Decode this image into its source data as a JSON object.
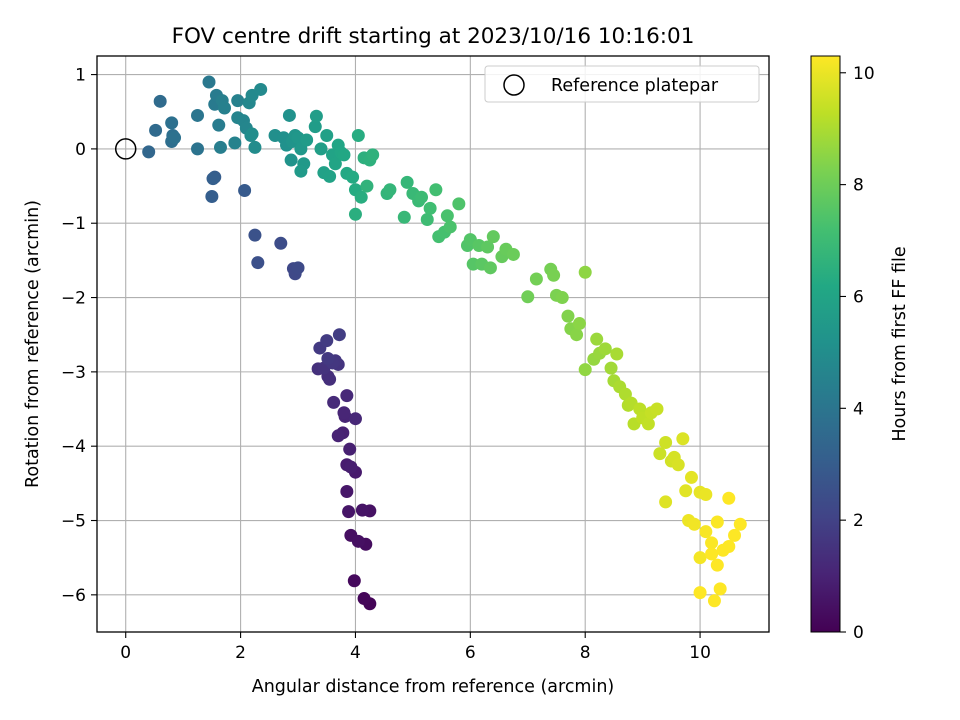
{
  "chart_data": {
    "type": "scatter",
    "title": "FOV centre drift starting at 2023/10/16 10:16:01",
    "xlabel": "Angular distance from reference (arcmin)",
    "ylabel": "Rotation from reference (arcmin)",
    "xlim": [
      -0.5,
      11.2
    ],
    "ylim": [
      -6.5,
      1.25
    ],
    "xticks": [
      0,
      2,
      4,
      6,
      8,
      10
    ],
    "yticks": [
      1,
      0,
      -1,
      -2,
      -3,
      -4,
      -5,
      -6
    ],
    "xtick_labels": [
      "0",
      "2",
      "4",
      "6",
      "8",
      "10"
    ],
    "ytick_labels": [
      "1",
      "0",
      "−1",
      "−2",
      "−3",
      "−4",
      "−5",
      "−6"
    ],
    "grid": true,
    "legend": {
      "position": "top-right",
      "entries": [
        "Reference platepar"
      ]
    },
    "reference_point": {
      "x": 0,
      "y": 0,
      "label": "Reference platepar",
      "marker": "open-circle"
    },
    "colorbar": {
      "label": "Hours from first FF file",
      "range": [
        0,
        10.3
      ],
      "ticks": [
        0,
        2,
        4,
        6,
        8,
        10
      ],
      "tick_labels": [
        "0",
        "2",
        "4",
        "6",
        "8",
        "10"
      ],
      "colormap": "viridis"
    },
    "points": [
      [
        4.25,
        -6.12,
        0.1
      ],
      [
        4.15,
        -6.05,
        0.15
      ],
      [
        3.98,
        -5.81,
        0.25
      ],
      [
        4.18,
        -5.32,
        0.35
      ],
      [
        3.92,
        -5.2,
        0.4
      ],
      [
        4.05,
        -5.28,
        0.45
      ],
      [
        4.25,
        -4.87,
        0.5
      ],
      [
        4.12,
        -4.86,
        0.55
      ],
      [
        3.88,
        -4.88,
        0.6
      ],
      [
        3.85,
        -4.61,
        0.65
      ],
      [
        4.0,
        -4.35,
        0.75
      ],
      [
        3.85,
        -4.25,
        0.8
      ],
      [
        3.92,
        -4.28,
        0.85
      ],
      [
        3.9,
        -4.04,
        0.9
      ],
      [
        3.78,
        -3.82,
        0.95
      ],
      [
        3.7,
        -3.86,
        1.0
      ],
      [
        3.82,
        -3.6,
        1.05
      ],
      [
        3.8,
        -3.55,
        1.1
      ],
      [
        4.0,
        -3.63,
        1.15
      ],
      [
        3.85,
        -3.32,
        1.2
      ],
      [
        3.62,
        -3.41,
        1.25
      ],
      [
        3.52,
        -3.06,
        1.35
      ],
      [
        3.55,
        -3.1,
        1.4
      ],
      [
        3.35,
        -2.96,
        1.45
      ],
      [
        3.45,
        -2.95,
        1.5
      ],
      [
        3.7,
        -2.9,
        1.55
      ],
      [
        3.65,
        -2.85,
        1.6
      ],
      [
        3.6,
        -2.88,
        1.65
      ],
      [
        3.52,
        -2.82,
        1.7
      ],
      [
        3.38,
        -2.68,
        1.75
      ],
      [
        3.5,
        -2.58,
        1.8
      ],
      [
        3.72,
        -2.5,
        1.85
      ],
      [
        2.92,
        -1.61,
        2.2
      ],
      [
        2.95,
        -1.68,
        2.25
      ],
      [
        3.0,
        -1.6,
        2.3
      ],
      [
        2.7,
        -1.27,
        2.4
      ],
      [
        2.3,
        -1.53,
        2.5
      ],
      [
        2.25,
        -1.16,
        2.6
      ],
      [
        2.07,
        -0.56,
        2.9
      ],
      [
        1.55,
        -0.38,
        3.0
      ],
      [
        1.5,
        -0.64,
        3.05
      ],
      [
        1.52,
        -0.4,
        3.1
      ],
      [
        0.4,
        -0.04,
        3.4
      ],
      [
        0.52,
        0.25,
        3.55
      ],
      [
        0.6,
        0.64,
        3.6
      ],
      [
        0.8,
        0.1,
        3.7
      ],
      [
        0.82,
        0.18,
        3.75
      ],
      [
        0.8,
        0.35,
        3.8
      ],
      [
        0.85,
        0.15,
        3.85
      ],
      [
        1.25,
        0.0,
        3.9
      ],
      [
        1.25,
        0.45,
        4.0
      ],
      [
        1.45,
        0.9,
        4.1
      ],
      [
        1.55,
        0.6,
        4.2
      ],
      [
        1.58,
        0.72,
        4.25
      ],
      [
        1.62,
        0.32,
        4.3
      ],
      [
        1.65,
        0.02,
        4.35
      ],
      [
        1.68,
        0.65,
        4.4
      ],
      [
        1.72,
        0.55,
        4.45
      ],
      [
        1.95,
        0.65,
        4.5
      ],
      [
        1.9,
        0.08,
        4.55
      ],
      [
        1.95,
        0.42,
        4.6
      ],
      [
        2.05,
        0.38,
        4.65
      ],
      [
        2.1,
        0.28,
        4.7
      ],
      [
        2.15,
        0.62,
        4.75
      ],
      [
        2.2,
        0.72,
        4.8
      ],
      [
        2.35,
        0.8,
        4.85
      ],
      [
        2.18,
        0.18,
        4.9
      ],
      [
        2.25,
        0.02,
        4.95
      ],
      [
        2.2,
        0.2,
        5.0
      ],
      [
        2.6,
        0.18,
        5.05
      ],
      [
        2.75,
        0.15,
        5.1
      ],
      [
        2.8,
        0.05,
        5.15
      ],
      [
        2.85,
        0.45,
        5.2
      ],
      [
        2.88,
        -0.15,
        5.25
      ],
      [
        2.9,
        0.1,
        5.3
      ],
      [
        2.95,
        0.18,
        5.35
      ],
      [
        3.0,
        0.15,
        5.4
      ],
      [
        3.05,
        -0.0,
        5.45
      ],
      [
        3.1,
        -0.2,
        5.5
      ],
      [
        3.05,
        -0.3,
        5.55
      ],
      [
        3.15,
        0.12,
        5.6
      ],
      [
        3.3,
        0.3,
        5.65
      ],
      [
        3.32,
        0.44,
        5.7
      ],
      [
        3.4,
        -0.0,
        5.75
      ],
      [
        3.5,
        0.18,
        5.8
      ],
      [
        3.45,
        -0.32,
        5.85
      ],
      [
        3.55,
        -0.37,
        5.9
      ],
      [
        3.6,
        -0.08,
        5.95
      ],
      [
        3.65,
        -0.2,
        6.0
      ],
      [
        3.7,
        0.05,
        6.05
      ],
      [
        3.75,
        -0.05,
        6.1
      ],
      [
        3.8,
        -0.08,
        6.15
      ],
      [
        3.85,
        -0.33,
        6.2
      ],
      [
        3.95,
        -0.38,
        6.25
      ],
      [
        4.0,
        -0.55,
        6.3
      ],
      [
        4.05,
        0.18,
        6.35
      ],
      [
        4.1,
        -0.65,
        6.4
      ],
      [
        4.0,
        -0.88,
        6.45
      ],
      [
        4.15,
        -0.12,
        6.5
      ],
      [
        4.25,
        -0.15,
        6.55
      ],
      [
        4.3,
        -0.08,
        6.6
      ],
      [
        4.2,
        -0.5,
        6.65
      ],
      [
        4.55,
        -0.6,
        6.7
      ],
      [
        4.6,
        -0.55,
        6.75
      ],
      [
        4.9,
        -0.45,
        6.8
      ],
      [
        4.85,
        -0.92,
        6.85
      ],
      [
        5.0,
        -0.6,
        6.9
      ],
      [
        5.1,
        -0.7,
        6.95
      ],
      [
        5.15,
        -0.65,
        7.0
      ],
      [
        5.25,
        -0.95,
        7.05
      ],
      [
        5.3,
        -0.8,
        7.1
      ],
      [
        5.4,
        -0.55,
        7.15
      ],
      [
        5.45,
        -1.18,
        7.2
      ],
      [
        5.55,
        -1.12,
        7.25
      ],
      [
        5.6,
        -0.9,
        7.3
      ],
      [
        5.65,
        -1.05,
        7.35
      ],
      [
        5.8,
        -0.74,
        7.4
      ],
      [
        5.95,
        -1.3,
        7.45
      ],
      [
        6.0,
        -1.22,
        7.5
      ],
      [
        6.05,
        -1.55,
        7.55
      ],
      [
        6.15,
        -1.3,
        7.6
      ],
      [
        6.2,
        -1.55,
        7.65
      ],
      [
        6.3,
        -1.32,
        7.7
      ],
      [
        6.35,
        -1.6,
        7.75
      ],
      [
        6.4,
        -1.18,
        7.8
      ],
      [
        6.55,
        -1.45,
        7.85
      ],
      [
        6.62,
        -1.35,
        7.9
      ],
      [
        6.75,
        -1.42,
        7.95
      ],
      [
        7.0,
        -1.99,
        8.05
      ],
      [
        7.15,
        -1.75,
        8.1
      ],
      [
        7.4,
        -1.62,
        8.15
      ],
      [
        7.45,
        -1.7,
        8.2
      ],
      [
        7.5,
        -1.97,
        8.25
      ],
      [
        7.6,
        -2.0,
        8.3
      ],
      [
        7.7,
        -2.25,
        8.35
      ],
      [
        7.75,
        -2.42,
        8.4
      ],
      [
        7.85,
        -2.5,
        8.45
      ],
      [
        7.9,
        -2.35,
        8.5
      ],
      [
        8.0,
        -1.66,
        8.55
      ],
      [
        8.0,
        -2.97,
        8.6
      ],
      [
        8.15,
        -2.83,
        8.65
      ],
      [
        8.25,
        -2.75,
        8.7
      ],
      [
        8.2,
        -2.56,
        8.75
      ],
      [
        8.35,
        -2.69,
        8.8
      ],
      [
        8.45,
        -2.95,
        8.85
      ],
      [
        8.5,
        -3.12,
        8.9
      ],
      [
        8.55,
        -2.76,
        8.95
      ],
      [
        8.6,
        -3.2,
        9.0
      ],
      [
        8.7,
        -3.3,
        9.05
      ],
      [
        8.75,
        -3.45,
        9.1
      ],
      [
        8.8,
        -3.42,
        9.15
      ],
      [
        8.85,
        -3.7,
        9.2
      ],
      [
        8.95,
        -3.5,
        9.25
      ],
      [
        9.0,
        -3.62,
        9.3
      ],
      [
        9.1,
        -3.7,
        9.35
      ],
      [
        9.15,
        -3.55,
        9.4
      ],
      [
        9.25,
        -3.5,
        9.45
      ],
      [
        9.3,
        -4.1,
        9.5
      ],
      [
        9.4,
        -3.95,
        9.55
      ],
      [
        9.5,
        -4.2,
        9.6
      ],
      [
        9.55,
        -4.15,
        9.65
      ],
      [
        9.62,
        -4.25,
        9.7
      ],
      [
        9.7,
        -3.9,
        9.75
      ],
      [
        9.4,
        -4.75,
        9.8
      ],
      [
        9.75,
        -4.6,
        9.85
      ],
      [
        9.85,
        -4.42,
        9.9
      ],
      [
        10.0,
        -4.62,
        9.95
      ],
      [
        10.1,
        -4.65,
        10.0
      ],
      [
        9.8,
        -5.0,
        10.05
      ],
      [
        9.9,
        -5.05,
        10.1
      ],
      [
        10.0,
        -5.5,
        10.15
      ],
      [
        10.1,
        -5.15,
        10.2
      ],
      [
        10.2,
        -5.3,
        10.25
      ],
      [
        10.3,
        -5.02,
        10.25
      ],
      [
        10.4,
        -5.4,
        10.3
      ],
      [
        10.5,
        -5.35,
        10.3
      ],
      [
        10.6,
        -5.2,
        10.3
      ],
      [
        10.7,
        -5.05,
        10.3
      ],
      [
        10.0,
        -5.97,
        10.3
      ],
      [
        10.25,
        -6.08,
        10.3
      ],
      [
        10.35,
        -5.92,
        10.3
      ],
      [
        10.5,
        -4.7,
        10.3
      ],
      [
        10.3,
        -5.6,
        10.3
      ],
      [
        10.2,
        -5.45,
        10.3
      ]
    ]
  }
}
